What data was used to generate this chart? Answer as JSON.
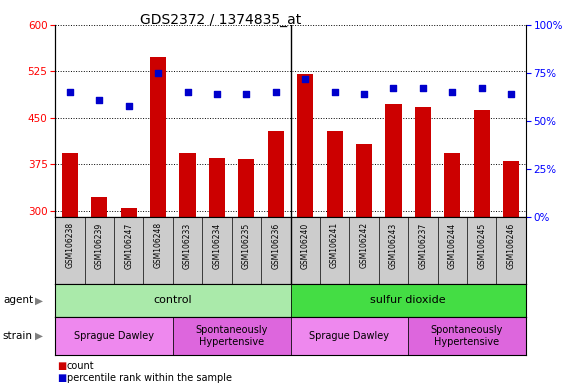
{
  "title": "GDS2372 / 1374835_at",
  "samples": [
    "GSM106238",
    "GSM106239",
    "GSM106247",
    "GSM106248",
    "GSM106233",
    "GSM106234",
    "GSM106235",
    "GSM106236",
    "GSM106240",
    "GSM106241",
    "GSM106242",
    "GSM106243",
    "GSM106237",
    "GSM106244",
    "GSM106245",
    "GSM106246"
  ],
  "counts": [
    393,
    323,
    305,
    549,
    393,
    385,
    383,
    428,
    521,
    428,
    408,
    472,
    467,
    393,
    463,
    381
  ],
  "percentiles": [
    65,
    61,
    58,
    75,
    65,
    64,
    64,
    65,
    72,
    65,
    64,
    67,
    67,
    65,
    67,
    64
  ],
  "bar_color": "#cc0000",
  "dot_color": "#0000cc",
  "ylim_left": [
    290,
    600
  ],
  "ylim_right": [
    0,
    100
  ],
  "yticks_left": [
    300,
    375,
    450,
    525,
    600
  ],
  "yticks_right": [
    0,
    25,
    50,
    75,
    100
  ],
  "agent_labels": [
    {
      "text": "control",
      "start": 0,
      "end": 7,
      "color": "#aaeaaa"
    },
    {
      "text": "sulfur dioxide",
      "start": 8,
      "end": 15,
      "color": "#44dd44"
    }
  ],
  "strain_labels": [
    {
      "text": "Sprague Dawley",
      "start": 0,
      "end": 3,
      "color": "#ee88ee"
    },
    {
      "text": "Spontaneously\nHypertensive",
      "start": 4,
      "end": 7,
      "color": "#dd66dd"
    },
    {
      "text": "Sprague Dawley",
      "start": 8,
      "end": 11,
      "color": "#ee88ee"
    },
    {
      "text": "Spontaneously\nHypertensive",
      "start": 12,
      "end": 15,
      "color": "#dd66dd"
    }
  ],
  "plot_bg": "#ffffff",
  "xlabel_bg": "#cccccc",
  "legend_count_color": "#cc0000",
  "legend_pct_color": "#0000cc"
}
